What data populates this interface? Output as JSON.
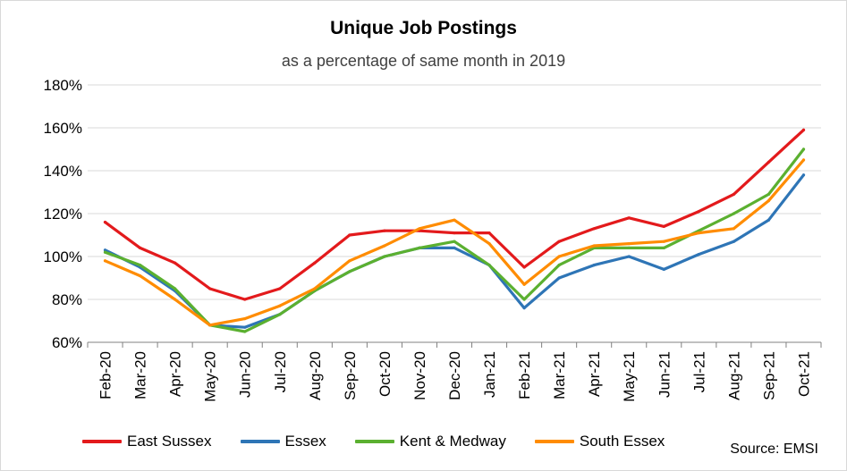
{
  "chart_data": {
    "type": "line",
    "title": "Unique Job Postings",
    "subtitle": "as a percentage of same month in 2019",
    "source": "Source: EMSI",
    "xlabel": "",
    "ylabel": "",
    "ylim": [
      60,
      180
    ],
    "yticks": [
      60,
      80,
      100,
      120,
      140,
      160,
      180
    ],
    "ytick_labels": [
      "60%",
      "80%",
      "100%",
      "120%",
      "140%",
      "160%",
      "180%"
    ],
    "grid": "horizontal",
    "legend_position": "bottom",
    "categories": [
      "Feb-20",
      "Mar-20",
      "Apr-20",
      "May-20",
      "Jun-20",
      "Jul-20",
      "Aug-20",
      "Sep-20",
      "Oct-20",
      "Nov-20",
      "Dec-20",
      "Jan-21",
      "Feb-21",
      "Mar-21",
      "Apr-21",
      "May-21",
      "Jun-21",
      "Jul-21",
      "Aug-21",
      "Sep-21",
      "Oct-21"
    ],
    "series": [
      {
        "name": "East Sussex",
        "color": "#e31a1c",
        "values": [
          116,
          104,
          97,
          85,
          80,
          85,
          97,
          110,
          112,
          112,
          111,
          111,
          95,
          107,
          113,
          118,
          114,
          121,
          129,
          144,
          159
        ]
      },
      {
        "name": "Essex",
        "color": "#2e75b6",
        "values": [
          103,
          95,
          84,
          68,
          67,
          73,
          84,
          93,
          100,
          104,
          104,
          96,
          76,
          90,
          96,
          100,
          94,
          101,
          107,
          117,
          138
        ]
      },
      {
        "name": "Kent & Medway",
        "color": "#5bb030",
        "values": [
          102,
          96,
          85,
          68,
          65,
          73,
          84,
          93,
          100,
          104,
          107,
          96,
          80,
          96,
          104,
          104,
          104,
          112,
          120,
          129,
          150
        ]
      },
      {
        "name": "South Essex",
        "color": "#ff8c00",
        "values": [
          98,
          91,
          80,
          68,
          71,
          77,
          85,
          98,
          105,
          113,
          117,
          106,
          87,
          100,
          105,
          106,
          107,
          111,
          113,
          126,
          145
        ]
      }
    ]
  }
}
